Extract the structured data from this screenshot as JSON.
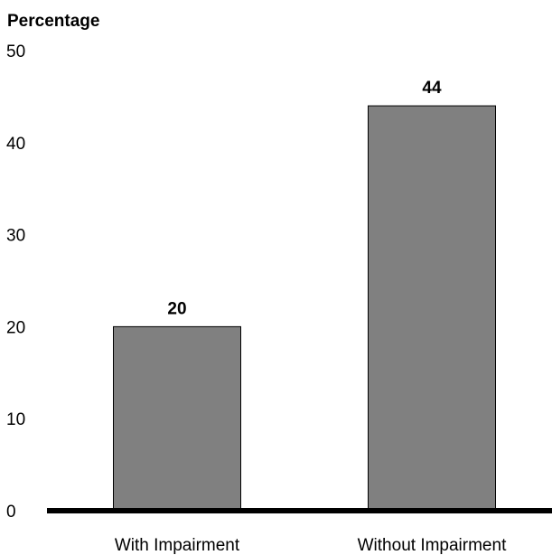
{
  "chart_data": {
    "type": "bar",
    "ylabel": "Percentage",
    "xlabel": "",
    "categories": [
      "With Impairment",
      "Without Impairment"
    ],
    "values": [
      20,
      44
    ],
    "data_labels": [
      "20",
      "44"
    ],
    "yticks": [
      "0",
      "10",
      "20",
      "30",
      "40",
      "50"
    ],
    "ylim": [
      0,
      50
    ],
    "grid": false,
    "legend": "none",
    "bar_color": "#808080",
    "axis_color": "#000000"
  }
}
